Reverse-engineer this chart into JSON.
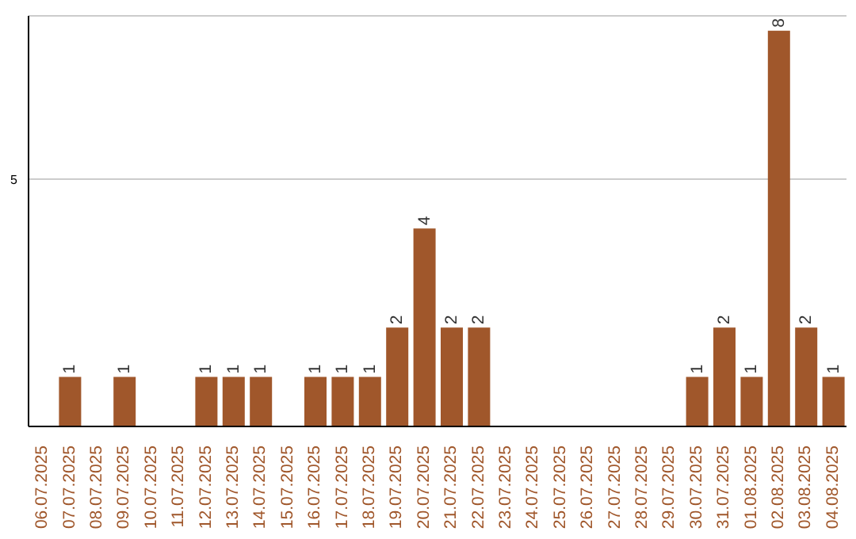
{
  "chart_data": {
    "type": "bar",
    "categories": [
      "06.07.2025",
      "07.07.2025",
      "08.07.2025",
      "09.07.2025",
      "10.07.2025",
      "11.07.2025",
      "12.07.2025",
      "13.07.2025",
      "14.07.2025",
      "15.07.2025",
      "16.07.2025",
      "17.07.2025",
      "18.07.2025",
      "19.07.2025",
      "20.07.2025",
      "21.07.2025",
      "22.07.2025",
      "23.07.2025",
      "24.07.2025",
      "25.07.2025",
      "26.07.2025",
      "27.07.2025",
      "28.07.2025",
      "29.07.2025",
      "30.07.2025",
      "31.07.2025",
      "01.08.2025",
      "02.08.2025",
      "03.08.2025",
      "04.08.2025"
    ],
    "values": [
      0,
      1,
      0,
      1,
      0,
      0,
      1,
      1,
      1,
      0,
      1,
      1,
      1,
      2,
      4,
      2,
      2,
      0,
      0,
      0,
      0,
      0,
      0,
      0,
      1,
      2,
      1,
      8,
      2,
      1
    ],
    "value_labels": [
      null,
      "1",
      null,
      "1",
      null,
      null,
      "1",
      "1",
      "1",
      null,
      "1",
      "1",
      "1",
      "2",
      "4",
      "2",
      "2",
      null,
      null,
      null,
      null,
      null,
      null,
      null,
      "1",
      "2",
      "1",
      "8",
      "2",
      "1"
    ],
    "color": "#a0572b",
    "ylim": [
      0,
      8.3
    ],
    "yticks": [
      5
    ],
    "grid": "y"
  }
}
